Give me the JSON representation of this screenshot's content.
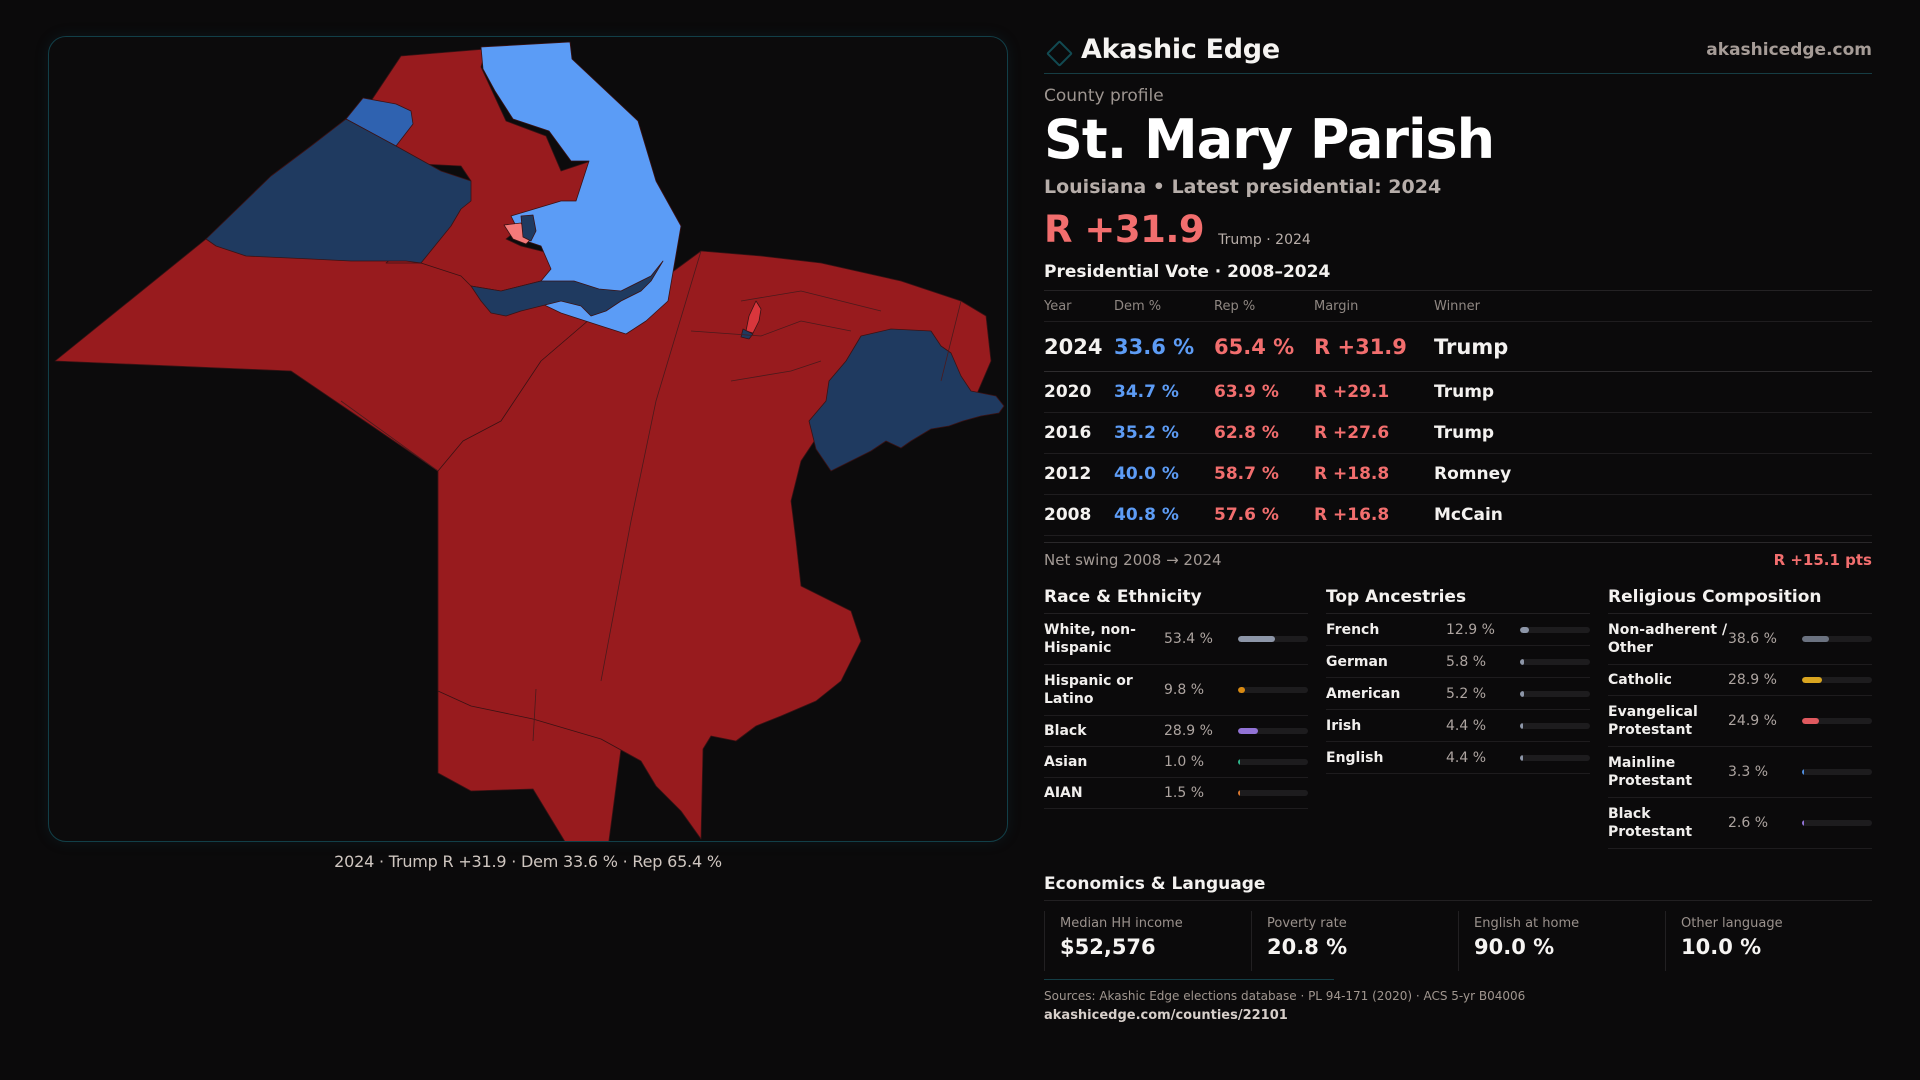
{
  "brand": {
    "name": "Akashic Edge",
    "url": "akashicedge.com",
    "logo_icon": "diamond-outline-icon"
  },
  "profile": {
    "eyebrow": "County profile",
    "title": "St. Mary Parish",
    "subtitle": "Louisiana • Latest presidential: 2024",
    "headline_margin": "R +31.9",
    "headline_meta": "Trump · 2024"
  },
  "colors": {
    "rep_strong": "#981b1e",
    "rep_light": "#f47a7a",
    "rep_mid": "#d9363c",
    "dem_light": "#5b9cf6",
    "dem_mid": "#2f62b0",
    "dem_dark": "#1f3a60",
    "accent": "#134a52"
  },
  "presidential": {
    "title": "Presidential Vote · 2008–2024",
    "headers": {
      "year": "Year",
      "dem": "Dem %",
      "rep": "Rep %",
      "margin": "Margin",
      "winner": "Winner"
    },
    "rows": [
      {
        "year": "2024",
        "dem": "33.6 %",
        "rep": "65.4 %",
        "margin": "R +31.9",
        "winner": "Trump"
      },
      {
        "year": "2020",
        "dem": "34.7 %",
        "rep": "63.9 %",
        "margin": "R +29.1",
        "winner": "Trump"
      },
      {
        "year": "2016",
        "dem": "35.2 %",
        "rep": "62.8 %",
        "margin": "R +27.6",
        "winner": "Trump"
      },
      {
        "year": "2012",
        "dem": "40.0 %",
        "rep": "58.7 %",
        "margin": "R +18.8",
        "winner": "Romney"
      },
      {
        "year": "2008",
        "dem": "40.8 %",
        "rep": "57.6 %",
        "margin": "R +16.8",
        "winner": "McCain"
      }
    ],
    "swing_label": "Net swing 2008 → 2024",
    "swing_value": "R +15.1 pts"
  },
  "race": {
    "title": "Race & Ethnicity",
    "items": [
      {
        "label": "White, non-Hispanic",
        "value": "53.4 %",
        "pct": 53.4,
        "color": "#8d96a8"
      },
      {
        "label": "Hispanic or Latino",
        "value": "9.8 %",
        "pct": 9.8,
        "color": "#d98a12"
      },
      {
        "label": "Black",
        "value": "28.9 %",
        "pct": 28.9,
        "color": "#9273d6"
      },
      {
        "label": "Asian",
        "value": "1.0 %",
        "pct": 1.0,
        "color": "#2fb38a"
      },
      {
        "label": "AIAN",
        "value": "1.5 %",
        "pct": 1.5,
        "color": "#d9772f"
      }
    ]
  },
  "ancestry": {
    "title": "Top Ancestries",
    "items": [
      {
        "label": "French",
        "value": "12.9 %",
        "pct": 12.9,
        "color": "#8d96a8"
      },
      {
        "label": "German",
        "value": "5.8 %",
        "pct": 5.8,
        "color": "#8d96a8"
      },
      {
        "label": "American",
        "value": "5.2 %",
        "pct": 5.2,
        "color": "#8d96a8"
      },
      {
        "label": "Irish",
        "value": "4.4 %",
        "pct": 4.4,
        "color": "#8d96a8"
      },
      {
        "label": "English",
        "value": "4.4 %",
        "pct": 4.4,
        "color": "#8d96a8"
      }
    ]
  },
  "religion": {
    "title": "Religious Composition",
    "items": [
      {
        "label": "Non-adherent / Other",
        "value": "38.6 %",
        "pct": 38.6,
        "color": "#6b7280"
      },
      {
        "label": "Catholic",
        "value": "28.9 %",
        "pct": 28.9,
        "color": "#d9a520"
      },
      {
        "label": "Evangelical Protestant",
        "value": "24.9 %",
        "pct": 24.9,
        "color": "#e0595f"
      },
      {
        "label": "Mainline Protestant",
        "value": "3.3 %",
        "pct": 3.3,
        "color": "#4f8ee0"
      },
      {
        "label": "Black Protestant",
        "value": "2.6 %",
        "pct": 2.6,
        "color": "#9273d6"
      }
    ]
  },
  "economics": {
    "title": "Economics & Language",
    "cells": [
      {
        "label": "Median HH income",
        "value": "$52,576"
      },
      {
        "label": "Poverty rate",
        "value": "20.8 %"
      },
      {
        "label": "English at home",
        "value": "90.0 %"
      },
      {
        "label": "Other language",
        "value": "10.0 %"
      }
    ]
  },
  "footer": {
    "sources": "Sources: Akashic Edge elections database · PL 94-171 (2020) · ACS 5-yr B04006",
    "url": "akashicedge.com/counties/22101"
  },
  "map": {
    "caption": "2024 · Trump R +31.9 · Dem 33.6 % · Rep 65.4 %"
  }
}
